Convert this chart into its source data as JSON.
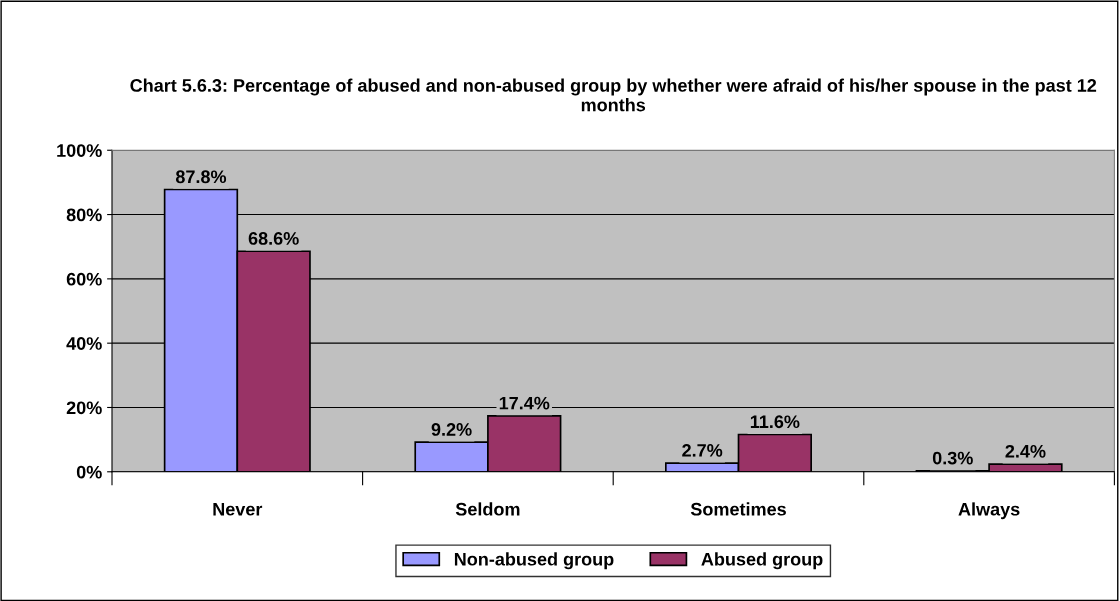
{
  "chart_data": {
    "type": "bar",
    "title": "Chart 5.6.3: Percentage of abused and non-abused group by whether were afraid of his/her spouse in the past 12 months",
    "categories": [
      "Never",
      "Seldom",
      "Sometimes",
      "Always"
    ],
    "series": [
      {
        "name": "Non-abused group",
        "color": "#9999ff",
        "values": [
          87.8,
          9.2,
          2.7,
          0.3
        ],
        "value_labels": [
          "87.8%",
          "9.2%",
          "2.7%",
          "0.3%"
        ]
      },
      {
        "name": "Abused group",
        "color": "#993366",
        "values": [
          68.6,
          17.4,
          11.6,
          2.4
        ],
        "value_labels": [
          "68.6%",
          "17.4%",
          "11.6%",
          "2.4%"
        ]
      }
    ],
    "ylim": [
      0,
      100
    ],
    "yticks": [
      {
        "value": 0,
        "label": "0%"
      },
      {
        "value": 20,
        "label": "20%"
      },
      {
        "value": 40,
        "label": "40%"
      },
      {
        "value": 60,
        "label": "60%"
      },
      {
        "value": 80,
        "label": "80%"
      },
      {
        "value": 100,
        "label": "100%"
      }
    ],
    "grid": "y",
    "legend": "bottom"
  }
}
